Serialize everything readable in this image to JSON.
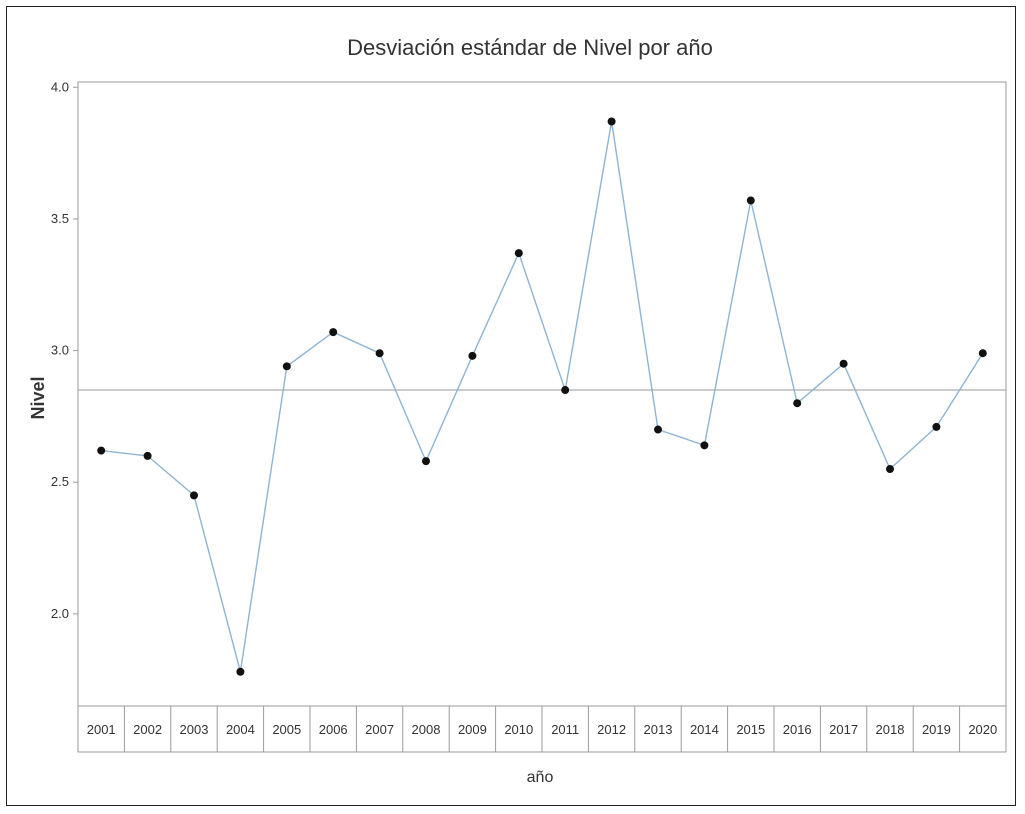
{
  "chart_data": {
    "type": "line",
    "title": "Desviación estándar de Nivel por año",
    "xlabel": "año",
    "ylabel": "Nivel",
    "categories": [
      "2001",
      "2002",
      "2003",
      "2004",
      "2005",
      "2006",
      "2007",
      "2008",
      "2009",
      "2010",
      "2011",
      "2012",
      "2013",
      "2014",
      "2015",
      "2016",
      "2017",
      "2018",
      "2019",
      "2020"
    ],
    "series": [
      {
        "values": [
          2.62,
          2.6,
          2.45,
          1.78,
          2.94,
          3.07,
          2.99,
          2.58,
          2.98,
          3.37,
          2.85,
          3.87,
          2.7,
          2.64,
          3.57,
          2.8,
          2.95,
          2.55,
          2.71,
          2.99
        ]
      }
    ],
    "reference_line": 2.85,
    "yticks": [
      "2.0",
      "2.5",
      "3.0",
      "3.5",
      "4.0"
    ],
    "ylim": [
      1.65,
      4.02
    ],
    "grid": false,
    "colors": {
      "line": "#8fb4d2",
      "marker": "#111111",
      "reference": "#9a9a9a",
      "axis": "#9a9a9a"
    }
  }
}
